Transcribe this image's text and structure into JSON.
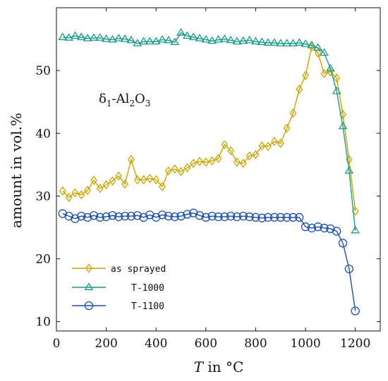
{
  "chart_data": {
    "type": "line",
    "title": "",
    "xlabel": {
      "italic": "T",
      "rest": " in °C"
    },
    "ylabel": "amount in vol.%",
    "xlim": [
      0,
      1300
    ],
    "ylim": [
      8.5,
      60
    ],
    "xticks": [
      0,
      200,
      400,
      600,
      800,
      1000,
      1200
    ],
    "yticks": [
      10,
      20,
      30,
      40,
      50
    ],
    "annotation": {
      "base": "δ",
      "sub1": "1",
      "mid": "-Al",
      "sub2": "2",
      "mid2": "O",
      "sub3": "3"
    },
    "legend_position": "bottom-left",
    "series": [
      {
        "name": "as sprayed",
        "color": "#c8a400",
        "marker": "diamond",
        "x": [
          25,
          50,
          75,
          100,
          125,
          150,
          175,
          200,
          225,
          250,
          275,
          300,
          325,
          350,
          375,
          400,
          425,
          450,
          475,
          500,
          525,
          550,
          575,
          600,
          625,
          650,
          675,
          700,
          725,
          750,
          775,
          800,
          825,
          850,
          875,
          900,
          925,
          950,
          975,
          1000,
          1025,
          1050,
          1075,
          1100,
          1125,
          1150,
          1175,
          1200
        ],
        "y": [
          30.8,
          29.8,
          30.5,
          30.2,
          30.9,
          32.5,
          31.2,
          31.8,
          32.4,
          33.2,
          31.9,
          35.8,
          32.6,
          32.6,
          32.8,
          32.6,
          31.5,
          34.0,
          34.3,
          33.9,
          34.5,
          35.2,
          35.5,
          35.4,
          35.6,
          36.0,
          38.2,
          37.2,
          35.4,
          35.2,
          36.4,
          36.6,
          38.0,
          37.9,
          38.7,
          38.4,
          40.8,
          43.2,
          47.0,
          49.2,
          53.8,
          52.8,
          49.5,
          49.8,
          48.8,
          43.0,
          35.8,
          27.6
        ]
      },
      {
        "name": "T-1000",
        "color": "#1a9a8a",
        "marker": "triangle",
        "x": [
          25,
          50,
          75,
          100,
          125,
          150,
          175,
          200,
          225,
          250,
          275,
          300,
          325,
          350,
          375,
          400,
          425,
          450,
          475,
          500,
          525,
          550,
          575,
          600,
          625,
          650,
          675,
          700,
          725,
          750,
          775,
          800,
          825,
          850,
          875,
          900,
          925,
          950,
          975,
          1000,
          1025,
          1050,
          1075,
          1100,
          1125,
          1150,
          1175,
          1200
        ],
        "y": [
          55.3,
          55.2,
          55.5,
          55.3,
          55.1,
          55.2,
          55.2,
          55.0,
          54.9,
          55.1,
          55.0,
          54.8,
          54.3,
          54.6,
          54.6,
          54.6,
          54.9,
          54.8,
          54.5,
          56.0,
          55.5,
          55.3,
          55.1,
          54.9,
          54.7,
          54.9,
          55.0,
          54.8,
          54.6,
          54.7,
          54.8,
          54.6,
          54.5,
          54.4,
          54.4,
          54.3,
          54.3,
          54.3,
          54.4,
          54.2,
          54.0,
          53.6,
          52.8,
          50.3,
          46.7,
          41.1,
          34.0,
          24.5
        ]
      },
      {
        "name": "T-1100",
        "color": "#1c4faa",
        "marker": "circle",
        "x": [
          25,
          50,
          75,
          100,
          125,
          150,
          175,
          200,
          225,
          250,
          275,
          300,
          325,
          350,
          375,
          400,
          425,
          450,
          475,
          500,
          525,
          550,
          575,
          600,
          625,
          650,
          675,
          700,
          725,
          750,
          775,
          800,
          825,
          850,
          875,
          900,
          925,
          950,
          975,
          1000,
          1025,
          1050,
          1075,
          1100,
          1125,
          1150,
          1175,
          1200
        ],
        "y": [
          27.2,
          26.8,
          26.4,
          26.8,
          26.6,
          26.9,
          26.6,
          26.7,
          26.9,
          26.7,
          26.8,
          26.8,
          26.9,
          26.6,
          27.0,
          26.6,
          27.0,
          26.8,
          26.7,
          26.8,
          27.1,
          27.3,
          26.9,
          26.6,
          26.8,
          26.7,
          26.7,
          26.8,
          26.7,
          26.8,
          26.7,
          26.6,
          26.5,
          26.6,
          26.6,
          26.6,
          26.6,
          26.6,
          26.6,
          25.1,
          24.9,
          25.1,
          24.9,
          24.8,
          24.4,
          22.5,
          18.4,
          11.7
        ]
      }
    ]
  }
}
